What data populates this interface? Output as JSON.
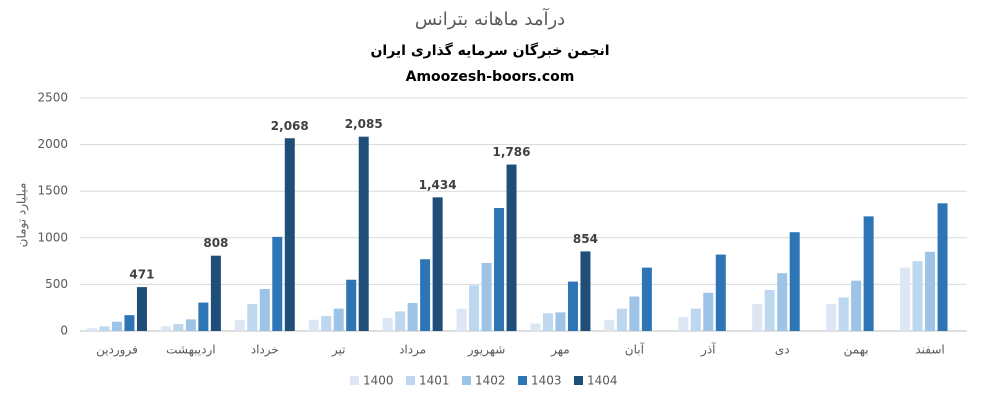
{
  "chart_data": {
    "type": "bar",
    "title": "درآمد ماهانه بترانس",
    "subtitle": [
      "انجمن خبرگان سرمایه گذاری ایران",
      "Amoozesh-boors.com"
    ],
    "y_label": "میلیارد تومان",
    "categories": [
      "فروردین",
      "اردیبهشت",
      "خرداد",
      "تیر",
      "مرداد",
      "شهریور",
      "مهر",
      "آبان",
      "آذر",
      "دی",
      "بهمن",
      "اسفند"
    ],
    "series": [
      {
        "name": "1400",
        "color": "#dde7f3",
        "values": [
          30,
          50,
          120,
          120,
          140,
          240,
          80,
          120,
          150,
          290,
          290,
          680
        ]
      },
      {
        "name": "1401",
        "color": "#bdd7ee",
        "values": [
          50,
          75,
          290,
          160,
          210,
          490,
          190,
          240,
          240,
          440,
          360,
          750
        ]
      },
      {
        "name": "1402",
        "color": "#9dc3e6",
        "values": [
          100,
          125,
          450,
          240,
          300,
          730,
          200,
          370,
          410,
          620,
          540,
          850
        ]
      },
      {
        "name": "1403",
        "color": "#2e75b6",
        "values": [
          170,
          305,
          1010,
          550,
          770,
          1320,
          530,
          680,
          820,
          1060,
          1230,
          1370
        ]
      },
      {
        "name": "1404",
        "color": "#1f4e79",
        "values": [
          471,
          808,
          2068,
          2085,
          1434,
          1786,
          854,
          null,
          null,
          null,
          null,
          null
        ],
        "value_labels": [
          "471",
          "808",
          "2,068",
          "2,085",
          "1,434",
          "1,786",
          "854",
          null,
          null,
          null,
          null,
          null
        ]
      }
    ],
    "ylim": [
      0,
      2500
    ],
    "yticks": [
      0,
      500,
      1000,
      1500,
      2000,
      2500
    ],
    "grid": true,
    "legend": "bottom"
  }
}
